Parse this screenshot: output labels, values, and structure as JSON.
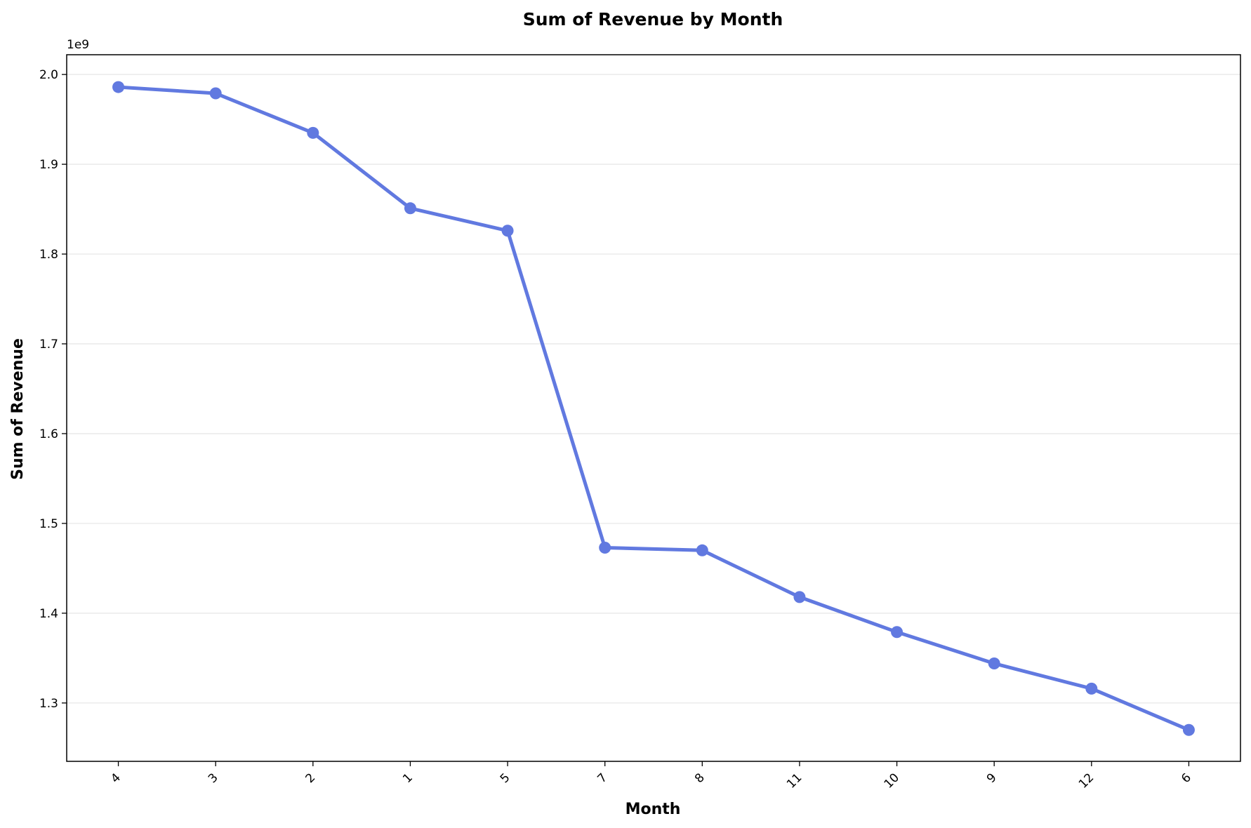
{
  "chart_data": {
    "type": "line",
    "title": "Sum of Revenue by Month",
    "xlabel": "Month",
    "ylabel": "Sum of Revenue",
    "y_offset_label": "1e9",
    "y_scale_factor": 1000000000,
    "categories": [
      "4",
      "3",
      "2",
      "1",
      "5",
      "7",
      "8",
      "11",
      "10",
      "9",
      "12",
      "6"
    ],
    "series": [
      {
        "values": [
          1986000000,
          1979000000,
          1935000000,
          1851000000,
          1826000000,
          1473000000,
          1470000000,
          1418000000,
          1379000000,
          1344000000,
          1316000000,
          1270000000
        ]
      }
    ],
    "ylim": [
      1235000000,
      2022000000
    ],
    "yticks": [
      1.3,
      1.4,
      1.5,
      1.6,
      1.7,
      1.8,
      1.9,
      2.0
    ],
    "ytick_labels": [
      "1.3",
      "1.4",
      "1.5",
      "1.6",
      "1.7",
      "1.8",
      "1.9",
      "2.0"
    ],
    "grid": "y-major",
    "line_color": "#6179e0",
    "grid_color": "#e5e5e5",
    "xtick_rotation": 45
  }
}
